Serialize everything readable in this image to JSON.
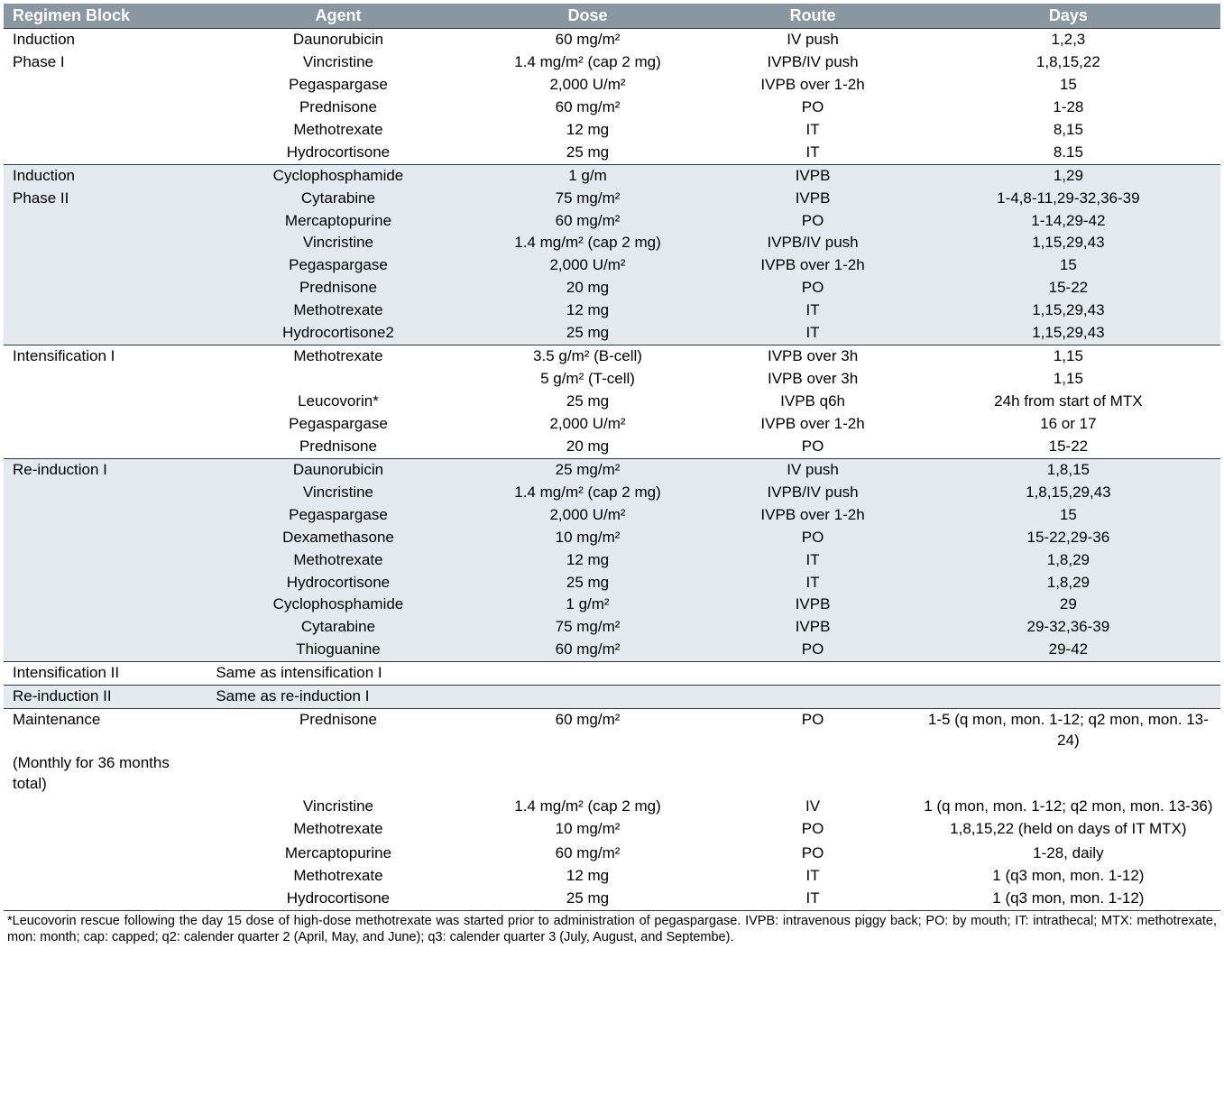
{
  "columns": {
    "regimen": "Regimen Block",
    "agent": "Agent",
    "dose": "Dose",
    "route": "Route",
    "days": "Days"
  },
  "blocks": [
    {
      "regimen": [
        "Induction",
        "Phase I"
      ],
      "shaded": false,
      "rows": [
        {
          "agent": "Daunorubicin",
          "dose": "60 mg/m²",
          "route": "IV push",
          "days": "1,2,3"
        },
        {
          "agent": "Vincristine",
          "dose": "1.4 mg/m² (cap 2 mg)",
          "route": "IVPB/IV push",
          "days": "1,8,15,22"
        },
        {
          "agent": "Pegaspargase",
          "dose": "2,000 U/m²",
          "route": "IVPB over 1-2h",
          "days": "15"
        },
        {
          "agent": "Prednisone",
          "dose": "60 mg/m²",
          "route": "PO",
          "days": "1-28"
        },
        {
          "agent": "Methotrexate",
          "dose": "12 mg",
          "route": "IT",
          "days": "8,15"
        },
        {
          "agent": "Hydrocortisone",
          "dose": "25 mg",
          "route": "IT",
          "days": "8.15"
        }
      ]
    },
    {
      "regimen": [
        "Induction",
        "Phase II"
      ],
      "shaded": true,
      "rows": [
        {
          "agent": "Cyclophosphamide",
          "dose": "1 g/m",
          "route": "IVPB",
          "days": "1,29"
        },
        {
          "agent": "Cytarabine",
          "dose": "75 mg/m²",
          "route": "IVPB",
          "days": "1-4,8-11,29-32,36-39"
        },
        {
          "agent": "Mercaptopurine",
          "dose": "60 mg/m²",
          "route": "PO",
          "days": "1-14,29-42"
        },
        {
          "agent": "Vincristine",
          "dose": "1.4 mg/m² (cap 2 mg)",
          "route": "IVPB/IV push",
          "days": "1,15,29,43"
        },
        {
          "agent": "Pegaspargase",
          "dose": "2,000 U/m²",
          "route": "IVPB over 1-2h",
          "days": "15"
        },
        {
          "agent": "Prednisone",
          "dose": "20 mg",
          "route": "PO",
          "days": "15-22"
        },
        {
          "agent": "Methotrexate",
          "dose": "12 mg",
          "route": "IT",
          "days": "1,15,29,43"
        },
        {
          "agent": "Hydrocortisone2",
          "dose": "25 mg",
          "route": "IT",
          "days": "1,15,29,43"
        }
      ]
    },
    {
      "regimen": [
        "Intensification I"
      ],
      "shaded": false,
      "rows": [
        {
          "agent": "Methotrexate",
          "dose": "3.5 g/m² (B-cell)",
          "route": "IVPB over 3h",
          "days": "1,15"
        },
        {
          "agent": "",
          "dose": "5 g/m² (T-cell)",
          "route": "IVPB over 3h",
          "days": "1,15"
        },
        {
          "agent": "Leucovorin*",
          "dose": "25 mg",
          "route": "IVPB q6h",
          "days": "24h from start of MTX"
        },
        {
          "agent": "Pegaspargase",
          "dose": "2,000 U/m²",
          "route": "IVPB over 1-2h",
          "days": "16 or 17"
        },
        {
          "agent": "Prednisone",
          "dose": "20 mg",
          "route": "PO",
          "days": "15-22"
        }
      ]
    },
    {
      "regimen": [
        "Re-induction I"
      ],
      "shaded": true,
      "rows": [
        {
          "agent": "Daunorubicin",
          "dose": "25 mg/m²",
          "route": "IV push",
          "days": "1,8,15"
        },
        {
          "agent": "Vincristine",
          "dose": "1.4 mg/m² (cap 2 mg)",
          "route": "IVPB/IV push",
          "days": "1,8,15,29,43"
        },
        {
          "agent": "Pegaspargase",
          "dose": "2,000 U/m²",
          "route": "IVPB over 1-2h",
          "days": "15"
        },
        {
          "agent": "Dexamethasone",
          "dose": "10 mg/m²",
          "route": "PO",
          "days": "15-22,29-36"
        },
        {
          "agent": "Methotrexate",
          "dose": "12 mg",
          "route": "IT",
          "days": "1,8,29"
        },
        {
          "agent": "Hydrocortisone",
          "dose": "25 mg",
          "route": "IT",
          "days": "1,8,29"
        },
        {
          "agent": "Cyclophosphamide",
          "dose": "1 g/m²",
          "route": "IVPB",
          "days": "29"
        },
        {
          "agent": "Cytarabine",
          "dose": "75 mg/m²",
          "route": "IVPB",
          "days": "29-32,36-39"
        },
        {
          "agent": "Thioguanine",
          "dose": "60 mg/m²",
          "route": "PO",
          "days": "29-42"
        }
      ]
    },
    {
      "regimen": [
        "Intensification II"
      ],
      "shaded": false,
      "rows": [
        {
          "agent": "Same as intensification I",
          "dose": "",
          "route": "",
          "days": "",
          "agent_align": "left"
        }
      ]
    },
    {
      "regimen": [
        "Re-induction II"
      ],
      "shaded": true,
      "rows": [
        {
          "agent": "Same as re-induction I",
          "dose": "",
          "route": "",
          "days": "",
          "agent_align": "left"
        }
      ]
    },
    {
      "regimen": [
        "Maintenance",
        "(Monthly for 36 months total)"
      ],
      "shaded": false,
      "rows": [
        {
          "agent": "Prednisone",
          "dose": "60 mg/m²",
          "route": "PO",
          "days": "1-5 (q mon, mon. 1-12; q2 mon, mon. 13-24)"
        },
        {
          "agent": "",
          "dose": "",
          "route": "",
          "days": ""
        },
        {
          "agent": "Vincristine",
          "dose": "1.4 mg/m² (cap 2 mg)",
          "route": "IV",
          "days": "1 (q mon, mon. 1-12; q2 mon, mon. 13-36)"
        },
        {
          "agent": "Methotrexate",
          "dose": "10 mg/m²",
          "route": "PO",
          "days": "1,8,15,22 (held on days of IT MTX)"
        },
        {
          "agent": "",
          "dose": "",
          "route": "",
          "days": ""
        },
        {
          "agent": "Mercaptopurine",
          "dose": "60 mg/m²",
          "route": "PO",
          "days": "1-28, daily"
        },
        {
          "agent": "Methotrexate",
          "dose": "12 mg",
          "route": "IT",
          "days": "1 (q3 mon, mon. 1-12)"
        },
        {
          "agent": "Hydrocortisone",
          "dose": "25 mg",
          "route": "IT",
          "days": "1 (q3 mon, mon. 1-12)"
        }
      ]
    }
  ],
  "footnote": "*Leucovorin rescue following the day 15 dose of high-dose methotrexate was started prior to administration of pegaspargase. IVPB: intravenous piggy back; PO: by mouth; IT: intrathecal; MTX: methotrexate, mon: month; cap: capped; q2: calender quarter 2 (April, May, and June); q3: calender quarter 3 (July, August, and Septembe)."
}
